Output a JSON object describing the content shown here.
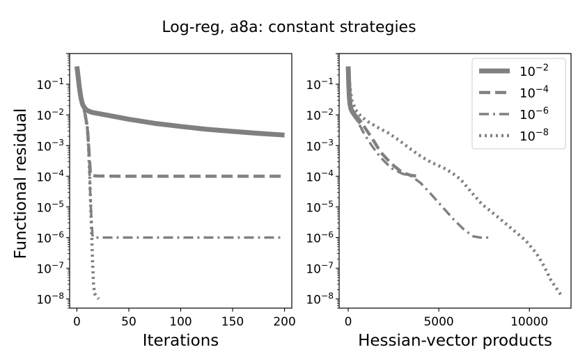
{
  "figure": {
    "title": "Log-reg, a8a: constant strategies",
    "ylabel": "Functional residual"
  },
  "colors": {
    "series": "#808080",
    "axis": "#000000",
    "background": "#ffffff"
  },
  "legend": {
    "location": "top-right",
    "entries": [
      {
        "base": "10",
        "exp": "−2",
        "style": "solid"
      },
      {
        "base": "10",
        "exp": "−4",
        "style": "dashed"
      },
      {
        "base": "10",
        "exp": "−6",
        "style": "dashdot"
      },
      {
        "base": "10",
        "exp": "−8",
        "style": "dotted"
      }
    ]
  },
  "chart_data": [
    {
      "type": "line",
      "xlabel": "Iterations",
      "ylabel": "Functional residual",
      "xlim": [
        -7,
        207
      ],
      "ylim": [
        5e-09,
        1
      ],
      "yscale": "log",
      "xticks": [
        {
          "value": 0,
          "label": "0"
        },
        {
          "value": 50,
          "label": "50"
        },
        {
          "value": 100,
          "label": "100"
        },
        {
          "value": 150,
          "label": "150"
        },
        {
          "value": 200,
          "label": "200"
        }
      ],
      "yticks": [
        {
          "value": 0.1,
          "base": "10",
          "exp": "−1"
        },
        {
          "value": 0.01,
          "base": "10",
          "exp": "−2"
        },
        {
          "value": 0.001,
          "base": "10",
          "exp": "−3"
        },
        {
          "value": 0.0001,
          "base": "10",
          "exp": "−4"
        },
        {
          "value": 1e-05,
          "base": "10",
          "exp": "−5"
        },
        {
          "value": 1e-06,
          "base": "10",
          "exp": "−6"
        },
        {
          "value": 1e-07,
          "base": "10",
          "exp": "−7"
        },
        {
          "value": 1e-08,
          "base": "10",
          "exp": "−8"
        }
      ],
      "series": [
        {
          "style": "solid",
          "x": [
            0,
            1,
            2,
            3,
            4,
            5,
            6,
            8,
            10,
            12,
            15,
            20,
            30,
            50,
            75,
            100,
            125,
            150,
            175,
            200
          ],
          "y": [
            0.38,
            0.2,
            0.1,
            0.055,
            0.035,
            0.025,
            0.02,
            0.016,
            0.014,
            0.013,
            0.012,
            0.0112,
            0.0097,
            0.0072,
            0.0053,
            0.0042,
            0.0034,
            0.0029,
            0.0025,
            0.0022
          ]
        },
        {
          "style": "dashed",
          "x": [
            0,
            2,
            4,
            6,
            8,
            10,
            11,
            12,
            13,
            14,
            16,
            20,
            40,
            100,
            200
          ],
          "y": [
            0.38,
            0.12,
            0.045,
            0.02,
            0.01,
            0.004,
            0.0015,
            0.0004,
            0.00013,
            0.000108,
            0.000104,
            0.000102,
            0.0001,
            0.0001,
            0.0001
          ]
        },
        {
          "style": "dashdot",
          "x": [
            0,
            2,
            4,
            6,
            8,
            10,
            11,
            12,
            13,
            14,
            15,
            16,
            20,
            50,
            100,
            200
          ],
          "y": [
            0.38,
            0.12,
            0.045,
            0.02,
            0.01,
            0.004,
            0.0012,
            0.0002,
            2e-05,
            4e-06,
            1.2e-06,
            1e-06,
            1e-06,
            1e-06,
            1e-06,
            1e-06
          ]
        },
        {
          "style": "dotted",
          "x": [
            0,
            2,
            4,
            6,
            8,
            10,
            11,
            12,
            13,
            14,
            15,
            16,
            17,
            19,
            21
          ],
          "y": [
            0.38,
            0.12,
            0.045,
            0.02,
            0.01,
            0.004,
            0.0012,
            0.0002,
            2e-05,
            2e-06,
            2e-07,
            3e-08,
            1.5e-08,
            1.2e-08,
            1e-08
          ]
        }
      ]
    },
    {
      "type": "line",
      "xlabel": "Hessian-vector products",
      "xlim": [
        -500,
        12300
      ],
      "ylim": [
        5e-09,
        1
      ],
      "yscale": "log",
      "xticks": [
        {
          "value": 0,
          "label": "0"
        },
        {
          "value": 5000,
          "label": "5000"
        },
        {
          "value": 10000,
          "label": "10000"
        }
      ],
      "yticks": [
        {
          "value": 0.1,
          "base": "10",
          "exp": "−1"
        },
        {
          "value": 0.01,
          "base": "10",
          "exp": "−2"
        },
        {
          "value": 0.001,
          "base": "10",
          "exp": "−3"
        },
        {
          "value": 0.0001,
          "base": "10",
          "exp": "−4"
        },
        {
          "value": 1e-05,
          "base": "10",
          "exp": "−5"
        },
        {
          "value": 1e-06,
          "base": "10",
          "exp": "−6"
        },
        {
          "value": 1e-07,
          "base": "10",
          "exp": "−7"
        },
        {
          "value": 1e-08,
          "base": "10",
          "exp": "−8"
        }
      ],
      "series": [
        {
          "style": "solid",
          "x": [
            0,
            30,
            60,
            100,
            150,
            220,
            300,
            400,
            550,
            700
          ],
          "y": [
            0.38,
            0.1,
            0.04,
            0.022,
            0.016,
            0.013,
            0.011,
            0.009,
            0.007,
            0.0055
          ]
        },
        {
          "style": "dashed",
          "x": [
            0,
            40,
            80,
            150,
            250,
            400,
            600,
            900,
            1300,
            1800,
            2400,
            3000,
            3500,
            3800,
            4000
          ],
          "y": [
            0.38,
            0.1,
            0.045,
            0.02,
            0.012,
            0.0085,
            0.006,
            0.004,
            0.0018,
            0.0006,
            0.00025,
            0.00013,
            0.000105,
            0.000102,
            0.0001
          ]
        },
        {
          "style": "dashdot",
          "x": [
            0,
            40,
            80,
            150,
            250,
            400,
            600,
            900,
            1300,
            1800,
            2400,
            3000,
            3500,
            4000,
            4600,
            5200,
            5800,
            6400,
            6900,
            7300,
            7700,
            7900
          ],
          "y": [
            0.38,
            0.1,
            0.045,
            0.02,
            0.012,
            0.0085,
            0.005,
            0.0023,
            0.001,
            0.0004,
            0.00018,
            0.00012,
            0.0001,
            6e-05,
            2.5e-05,
            1e-05,
            4e-06,
            1.8e-06,
            1.1e-06,
            1e-06,
            1e-06,
            1e-06
          ]
        },
        {
          "style": "dotted",
          "x": [
            0,
            50,
            100,
            200,
            400,
            700,
            1100,
            1600,
            2200,
            2800,
            3400,
            4000,
            4600,
            5000,
            5400,
            5800,
            6200,
            6800,
            7400,
            8200,
            9000,
            9800,
            10400,
            10800,
            11200,
            11600,
            11800
          ],
          "y": [
            0.38,
            0.2,
            0.08,
            0.03,
            0.015,
            0.009,
            0.006,
            0.004,
            0.0026,
            0.0015,
            0.0008,
            0.00045,
            0.00028,
            0.00022,
            0.00017,
            0.00012,
            8e-05,
            3e-05,
            1.2e-05,
            5e-06,
            2e-06,
            8e-07,
            3e-07,
            1.2e-07,
            4e-08,
            1.8e-08,
            1.2e-08
          ]
        }
      ]
    }
  ]
}
